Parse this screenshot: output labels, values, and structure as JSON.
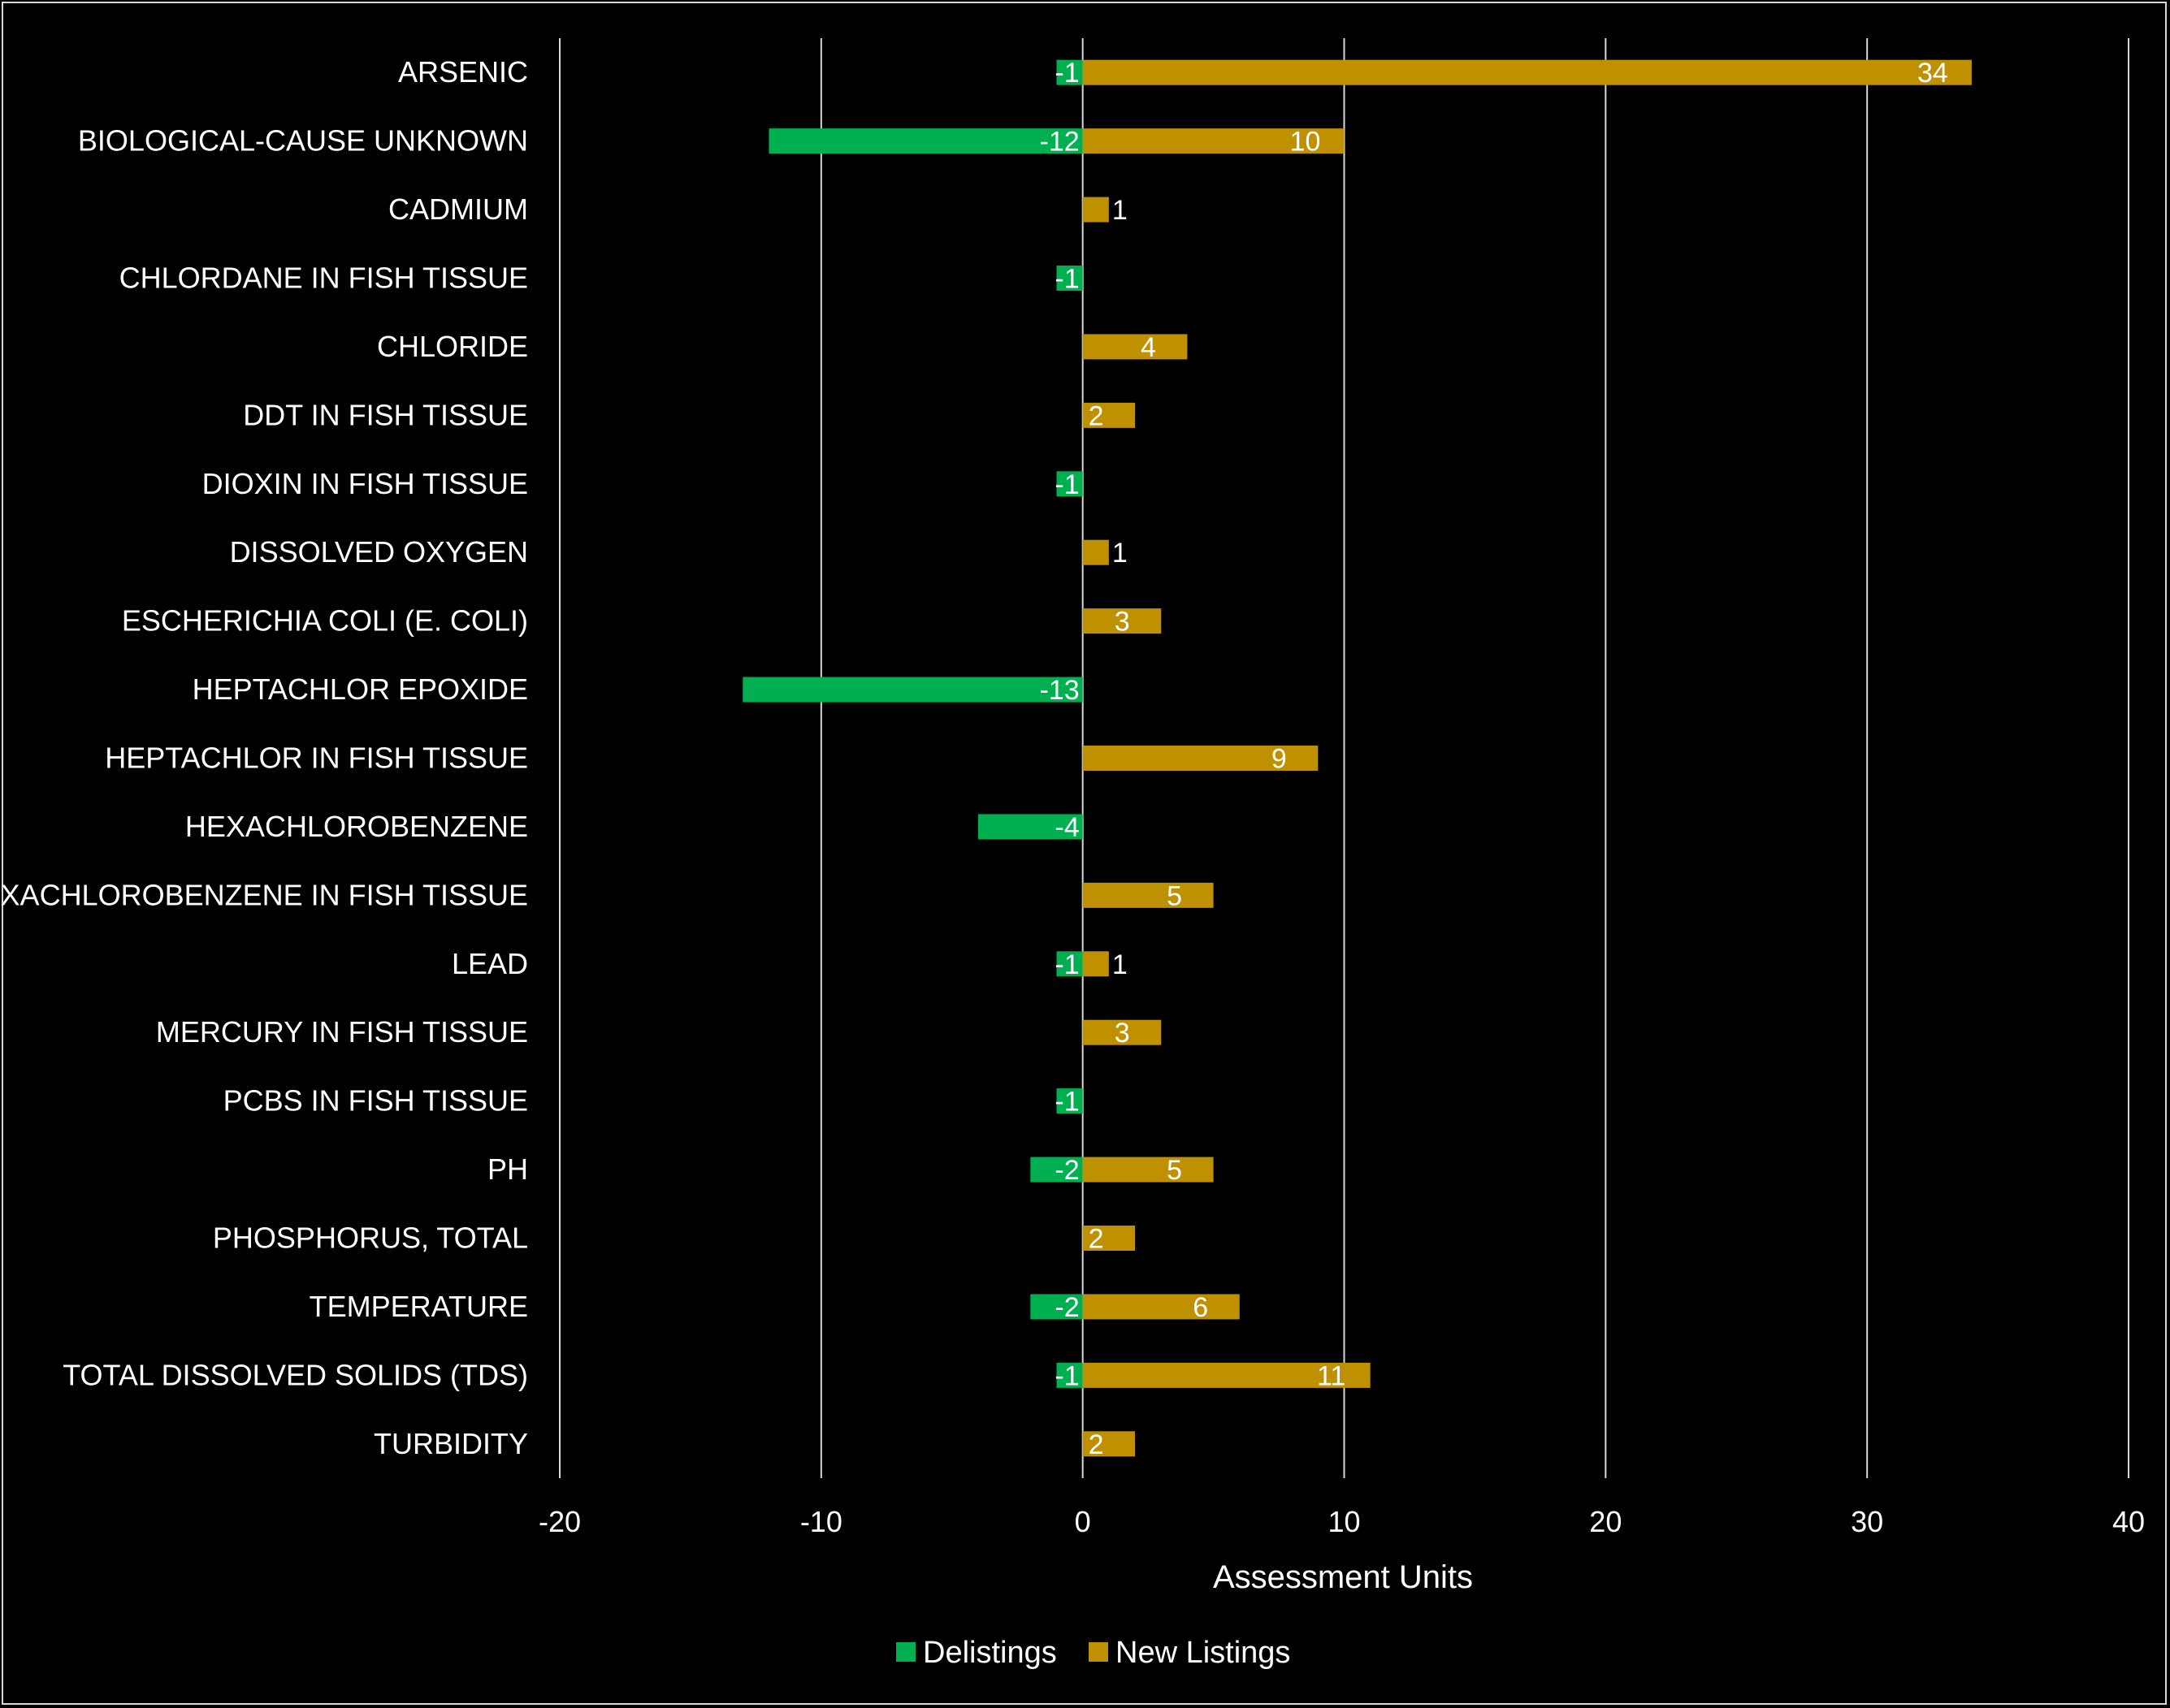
{
  "chart_data": {
    "type": "bar",
    "orientation": "horizontal",
    "stacked": true,
    "title": "",
    "xlabel": "Assessment Units",
    "ylabel": "",
    "xlim": [
      -20,
      40
    ],
    "xticks": [
      -20,
      -10,
      0,
      10,
      20,
      30,
      40
    ],
    "grid": true,
    "legend_position": "bottom",
    "categories": [
      "ARSENIC",
      "BIOLOGICAL-CAUSE UNKNOWN",
      "CADMIUM",
      "CHLORDANE IN FISH TISSUE",
      "CHLORIDE",
      "DDT IN FISH TISSUE",
      "DIOXIN IN FISH TISSUE",
      "DISSOLVED OXYGEN",
      "ESCHERICHIA COLI (E. COLI)",
      "HEPTACHLOR EPOXIDE",
      "HEPTACHLOR IN FISH TISSUE",
      "HEXACHLOROBENZENE",
      "HEXACHLOROBENZENE IN FISH TISSUE",
      "LEAD",
      "MERCURY IN FISH TISSUE",
      "PCBS IN FISH TISSUE",
      "PH",
      "PHOSPHORUS, TOTAL",
      "TEMPERATURE",
      "TOTAL DISSOLVED SOLIDS (TDS)",
      "TURBIDITY"
    ],
    "series": [
      {
        "name": "Delistings",
        "color": "#00b050",
        "values": [
          -1,
          -12,
          null,
          -1,
          null,
          null,
          -1,
          null,
          null,
          -13,
          null,
          -4,
          null,
          -1,
          null,
          -1,
          -2,
          null,
          -2,
          -1,
          null
        ]
      },
      {
        "name": "New Listings",
        "color": "#bf9000",
        "values": [
          34,
          10,
          1,
          null,
          4,
          2,
          null,
          1,
          3,
          null,
          9,
          null,
          5,
          1,
          3,
          null,
          5,
          2,
          6,
          11,
          2
        ]
      }
    ]
  },
  "colors": {
    "background": "#000000",
    "gridline": "#d9d9d9",
    "text": "#ffffff"
  }
}
